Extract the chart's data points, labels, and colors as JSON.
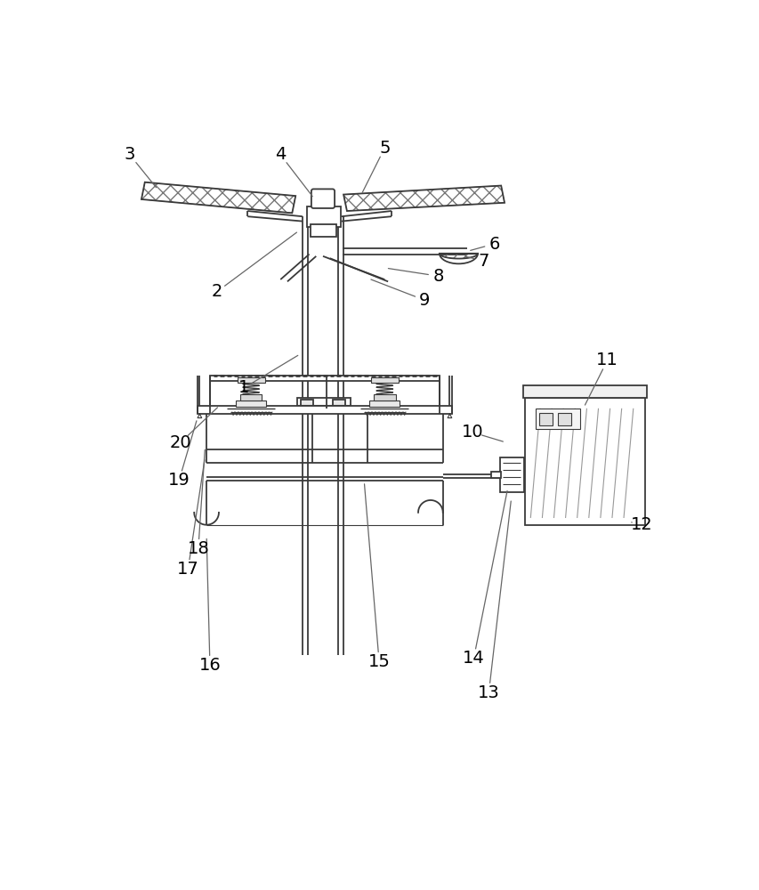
{
  "bg_color": "#ffffff",
  "line_color": "#3a3a3a",
  "label_color": "#000000",
  "fig_width": 8.54,
  "fig_height": 10.0
}
